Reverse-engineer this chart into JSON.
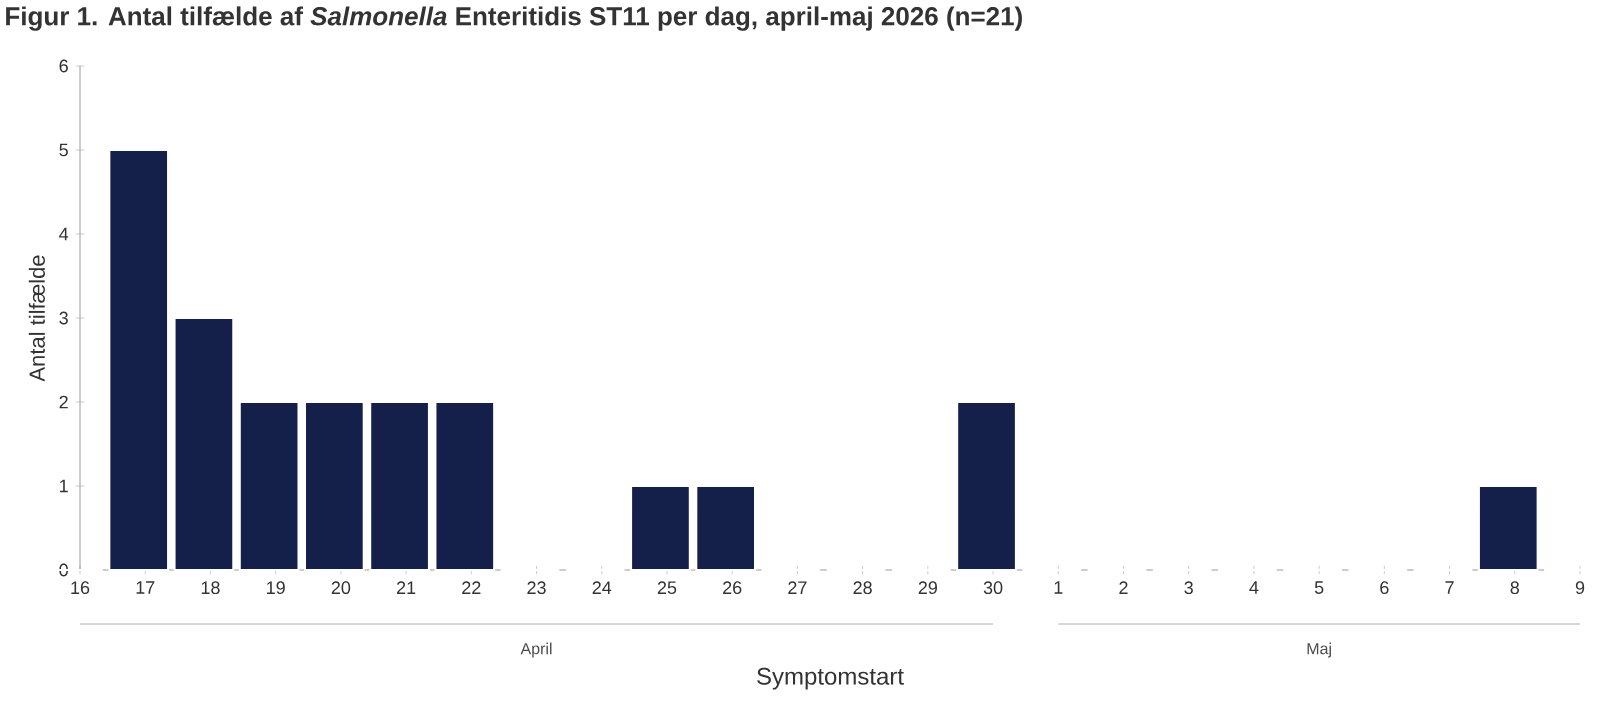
{
  "chart_data": {
    "type": "bar",
    "title": "Figur 1. Antal tilfælde af *Salmonella* Enteritidis ST11 per dag, april-maj 2026 (n=21)",
    "xlabel": "Symptomstart",
    "ylabel": "Antal tilfælde",
    "categories": [
      "16",
      "17",
      "18",
      "19",
      "20",
      "21",
      "22",
      "23",
      "24",
      "25",
      "26",
      "27",
      "28",
      "29",
      "30",
      "1",
      "2",
      "3",
      "4",
      "5",
      "6",
      "7",
      "8",
      "9"
    ],
    "values": [
      0,
      5,
      3,
      2,
      2,
      2,
      2,
      0,
      0,
      1,
      1,
      0,
      0,
      0,
      2,
      0,
      0,
      0,
      0,
      0,
      0,
      0,
      1,
      0
    ],
    "color": "#14204a",
    "ylim": [
      0,
      6
    ],
    "yticks": [
      0,
      1,
      2,
      3,
      4,
      5,
      6
    ],
    "grid": false,
    "annotations": [
      "April",
      "Maj"
    ]
  }
}
